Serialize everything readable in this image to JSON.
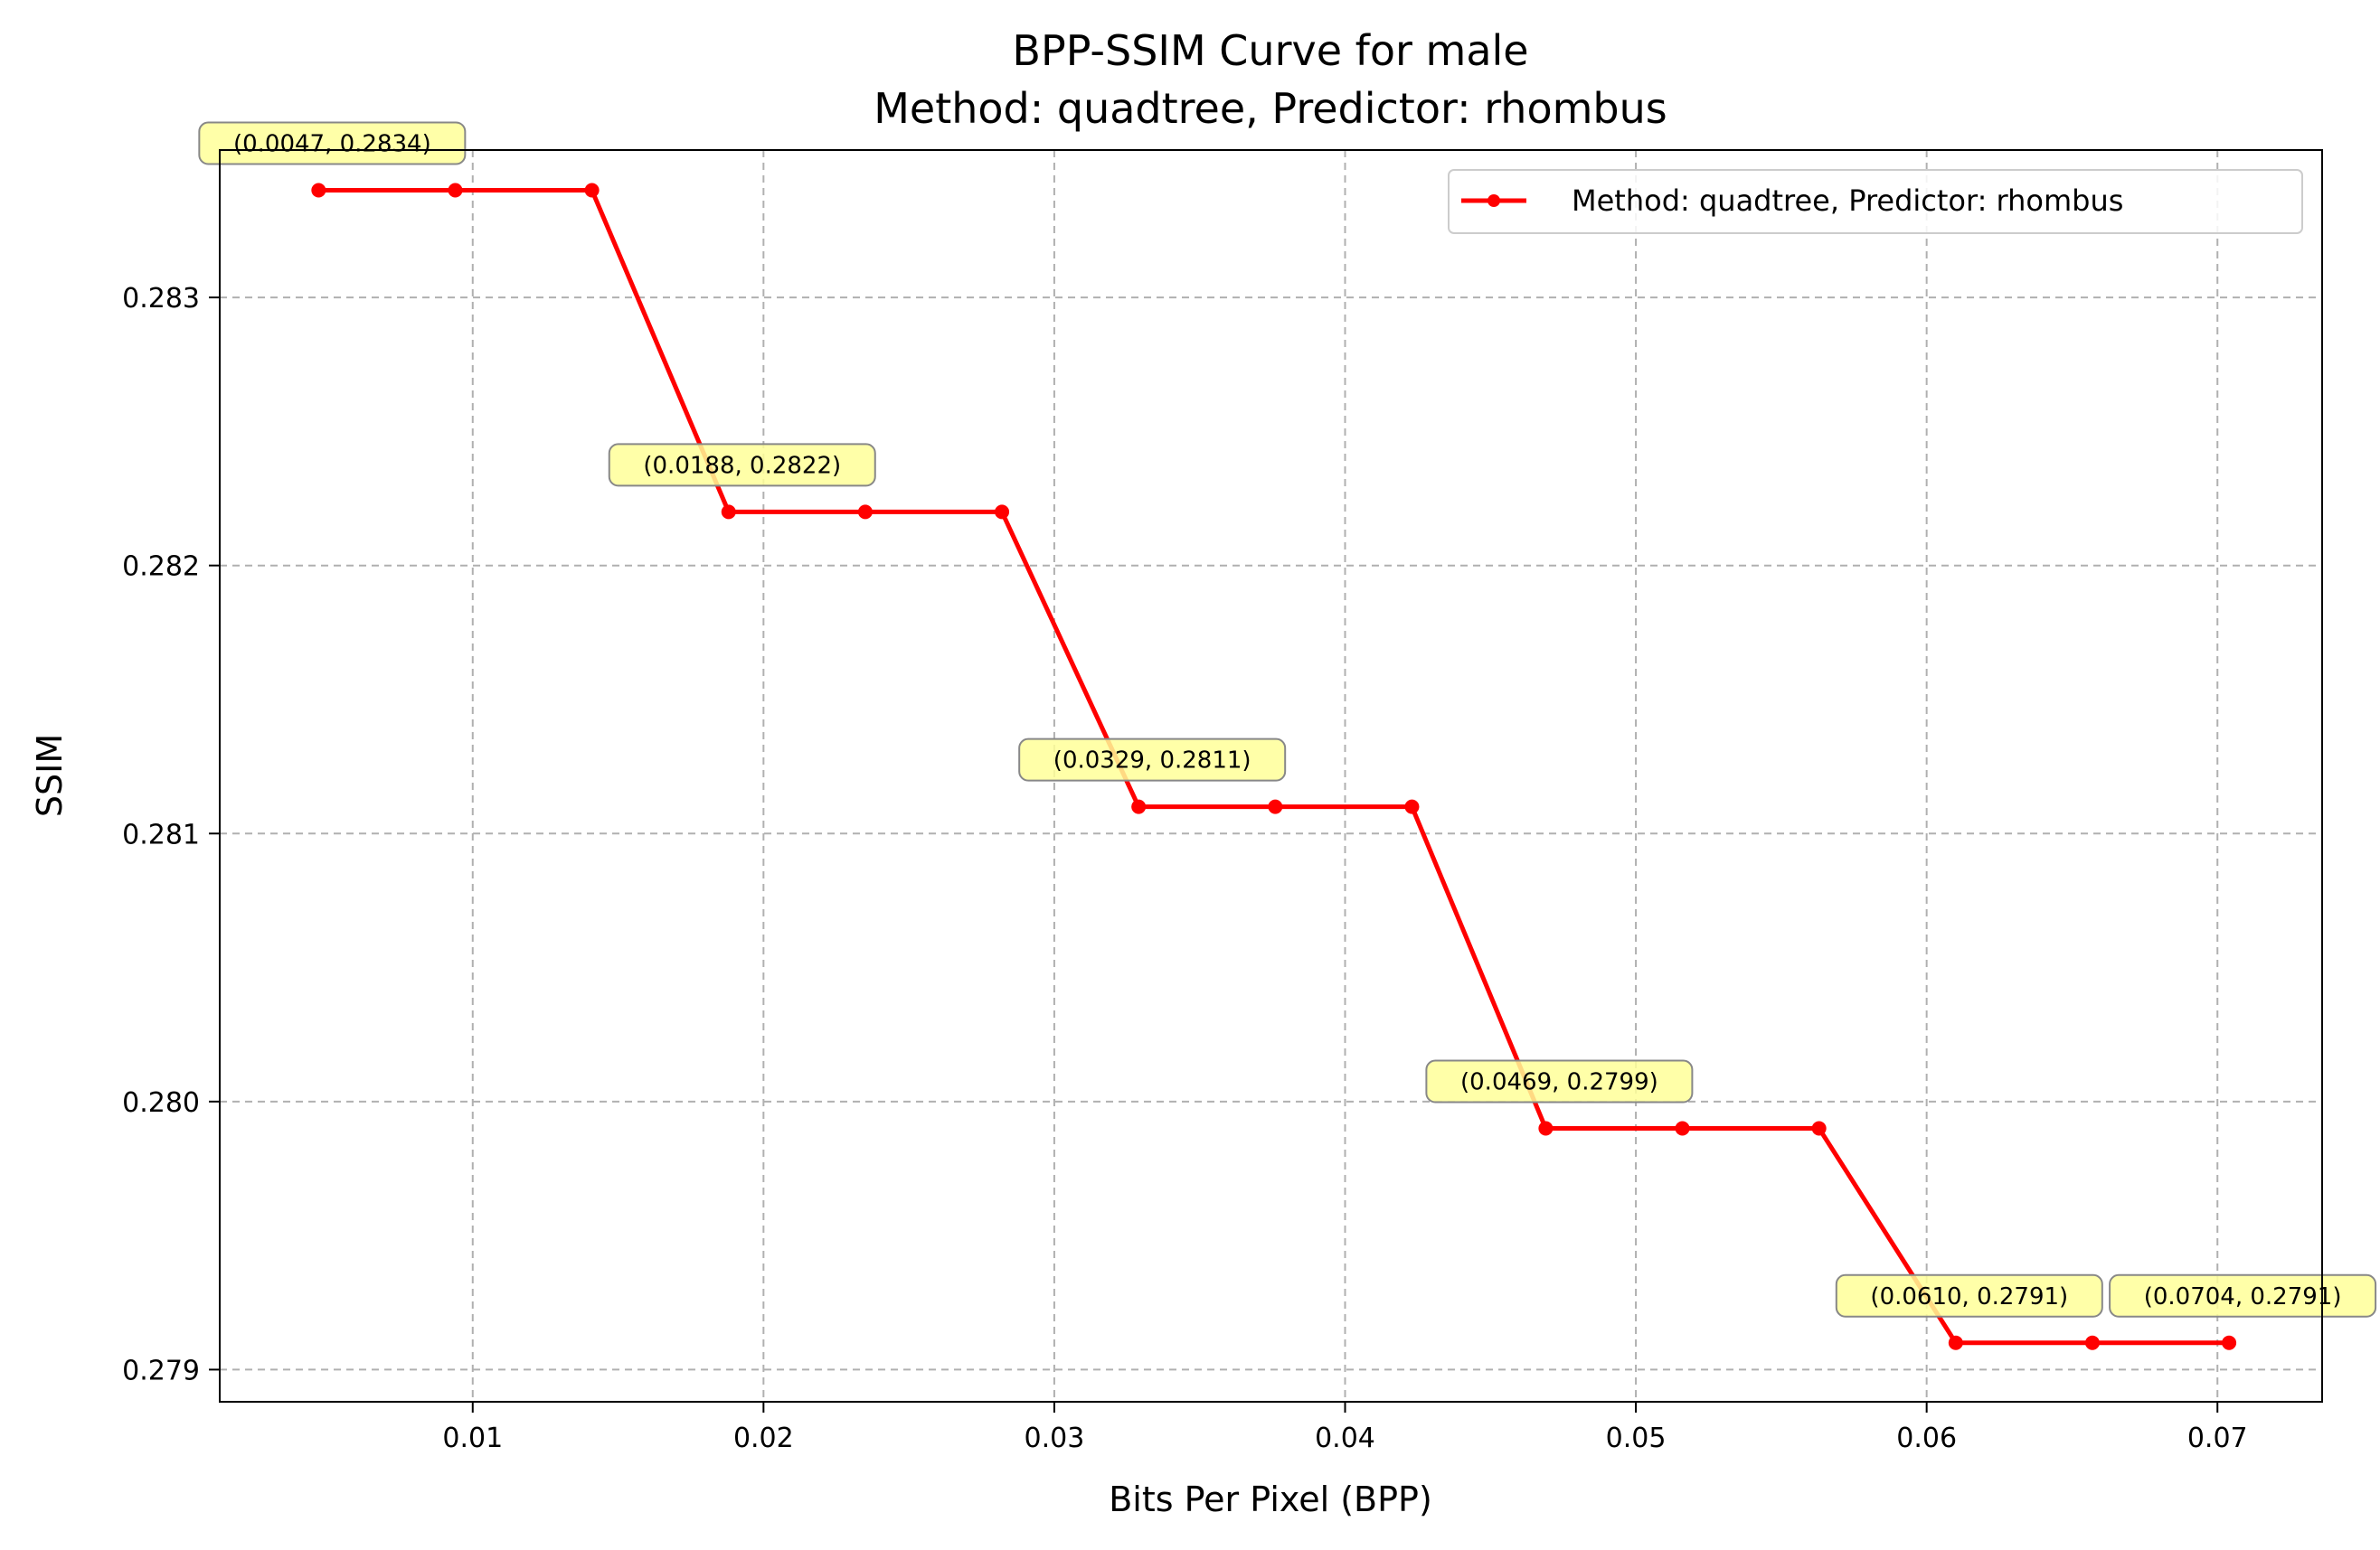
{
  "chart_data": {
    "type": "line",
    "title": "BPP-SSIM Curve for male",
    "subtitle": "Method: quadtree, Predictor: rhombus",
    "xlabel": "Bits Per Pixel (BPP)",
    "ylabel": "SSIM",
    "xlim": [
      0.0013,
      0.0736
    ],
    "ylim": [
      0.27888,
      0.28355
    ],
    "xticks": [
      0.01,
      0.02,
      0.03,
      0.04,
      0.05,
      0.06,
      0.07
    ],
    "xtick_labels": [
      "0.01",
      "0.02",
      "0.03",
      "0.04",
      "0.05",
      "0.06",
      "0.07"
    ],
    "yticks": [
      0.279,
      0.28,
      0.281,
      0.282,
      0.283
    ],
    "ytick_labels": [
      "0.279",
      "0.280",
      "0.281",
      "0.282",
      "0.283"
    ],
    "grid": true,
    "legend_position": "top-right",
    "series": [
      {
        "name": "Method: quadtree, Predictor: rhombus",
        "color": "#ff0000",
        "marker": "circle",
        "x": [
          0.0047,
          0.0094,
          0.0141,
          0.0188,
          0.0235,
          0.0282,
          0.0329,
          0.0376,
          0.0423,
          0.0469,
          0.0516,
          0.0563,
          0.061,
          0.0657,
          0.0704
        ],
        "y": [
          0.2834,
          0.2834,
          0.2834,
          0.2822,
          0.2822,
          0.2822,
          0.2811,
          0.2811,
          0.2811,
          0.2799,
          0.2799,
          0.2799,
          0.2791,
          0.2791,
          0.2791
        ]
      }
    ],
    "annotations": [
      {
        "x": 0.0047,
        "y": 0.2834,
        "text": "(0.0047, 0.2834)"
      },
      {
        "x": 0.0188,
        "y": 0.2822,
        "text": "(0.0188, 0.2822)"
      },
      {
        "x": 0.0329,
        "y": 0.2811,
        "text": "(0.0329, 0.2811)"
      },
      {
        "x": 0.0469,
        "y": 0.2799,
        "text": "(0.0469, 0.2799)"
      },
      {
        "x": 0.061,
        "y": 0.2791,
        "text": "(0.0610, 0.2791)"
      },
      {
        "x": 0.0704,
        "y": 0.2791,
        "text": "(0.0704, 0.2791)"
      }
    ],
    "colors": {
      "grid": "#b0b0b0",
      "annotation_fill": "#ffff99",
      "annotation_stroke": "#888888"
    }
  }
}
